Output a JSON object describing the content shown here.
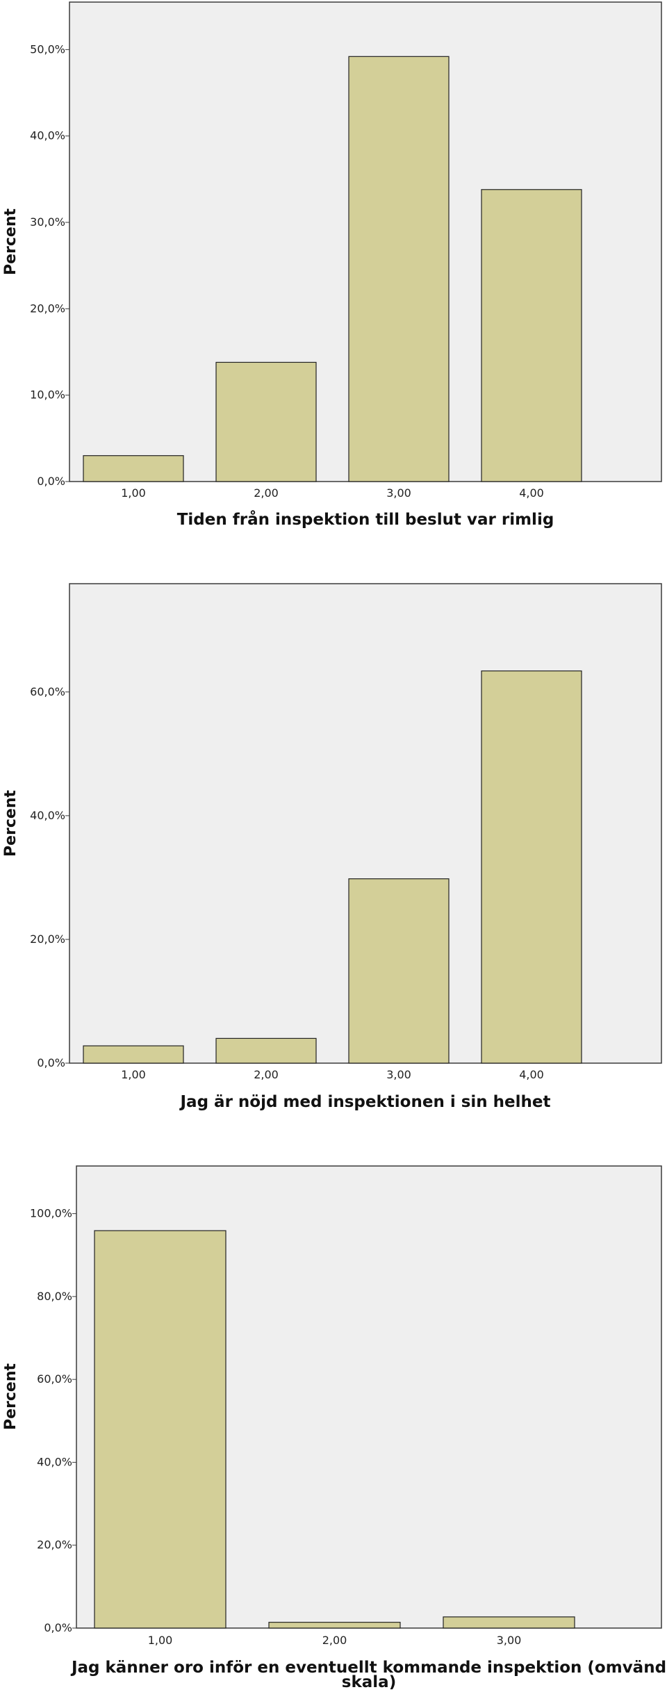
{
  "chart_data": [
    {
      "type": "bar",
      "categories": [
        "1,00",
        "2,00",
        "3,00",
        "4,00"
      ],
      "values": [
        3.0,
        13.8,
        49.2,
        33.8
      ],
      "ylim": [
        0,
        55.5
      ],
      "yticks": [
        "0,0%",
        "10,0%",
        "20,0%",
        "30,0%",
        "40,0%",
        "50,0%"
      ],
      "ytick_values": [
        0,
        10,
        20,
        30,
        40,
        50
      ],
      "xlabel": "Tiden från inspektion till beslut var rimlig",
      "ylabel": "Percent",
      "grid": false,
      "bar_color": "#d3cf98",
      "plot_background": "#efefef"
    },
    {
      "type": "bar",
      "categories": [
        "1,00",
        "2,00",
        "3,00",
        "4,00"
      ],
      "values": [
        2.8,
        4.0,
        29.8,
        63.4
      ],
      "ylim": [
        0,
        77.5
      ],
      "yticks": [
        "0,0%",
        "20,0%",
        "40,0%",
        "60,0%"
      ],
      "ytick_values": [
        0,
        20,
        40,
        60
      ],
      "xlabel": "Jag är nöjd med inspektionen i sin helhet",
      "ylabel": "Percent",
      "grid": false,
      "bar_color": "#d3cf98",
      "plot_background": "#efefef"
    },
    {
      "type": "bar",
      "categories": [
        "1,00",
        "2,00",
        "3,00"
      ],
      "values": [
        95.9,
        1.4,
        2.7
      ],
      "ylim": [
        0,
        111.5
      ],
      "yticks": [
        "0,0%",
        "20,0%",
        "40,0%",
        "60,0%",
        "80,0%",
        "100,0%"
      ],
      "ytick_values": [
        0,
        20,
        40,
        60,
        80,
        100
      ],
      "xlabel_lines": [
        "Jag känner oro inför en eventuellt kommande inspektion (omvänd",
        "skala)"
      ],
      "ylabel": "Percent",
      "grid": false,
      "bar_color": "#d3cf98",
      "plot_background": "#efefef"
    }
  ]
}
